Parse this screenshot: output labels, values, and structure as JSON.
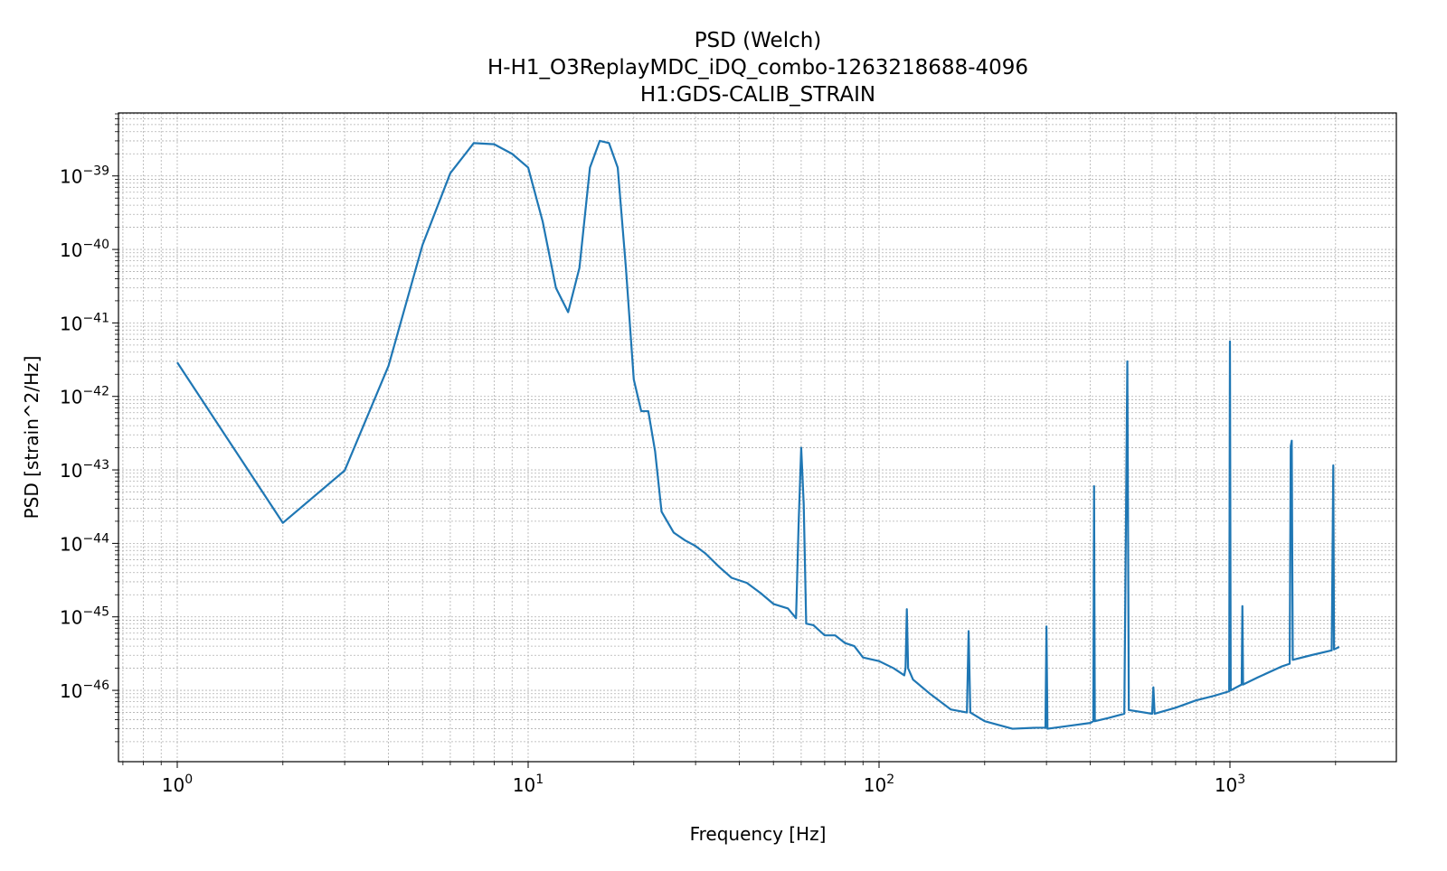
{
  "chart_data": {
    "type": "line",
    "title": [
      "PSD (Welch)",
      "H-H1_O3ReplayMDC_iDQ_combo-1263218688-4096",
      "H1:GDS-CALIB_STRAIN"
    ],
    "xlabel": "Frequency [Hz]",
    "ylabel": "PSD [strain^2/Hz]",
    "xscale": "log",
    "yscale": "log",
    "grid": true,
    "xlim": [
      0.68,
      2980
    ],
    "ylim": [
      1.07e-47,
      7.2e-39
    ],
    "xticks": [
      {
        "value": 1,
        "label": "100"
      },
      {
        "value": 10,
        "label": "101"
      },
      {
        "value": 100,
        "label": "102"
      },
      {
        "value": 1000,
        "label": "103"
      }
    ],
    "yticks": [
      {
        "value": 1e-46,
        "label": "10−46"
      },
      {
        "value": 1e-45,
        "label": "10−45"
      },
      {
        "value": 1e-44,
        "label": "10−44"
      },
      {
        "value": 1e-43,
        "label": "10−43"
      },
      {
        "value": 1e-42,
        "label": "10−42"
      },
      {
        "value": 1e-41,
        "label": "10−41"
      },
      {
        "value": 1e-40,
        "label": "10−40"
      },
      {
        "value": 1e-39,
        "label": "10−39"
      }
    ],
    "x": [
      1,
      2,
      3,
      4,
      5,
      6,
      7,
      8,
      9,
      10,
      11,
      12,
      13,
      14,
      15,
      16,
      17,
      18,
      19,
      20,
      21,
      22,
      23,
      24,
      26,
      28,
      30,
      32,
      35,
      38,
      42,
      46,
      50,
      55,
      58,
      59,
      60,
      61,
      62,
      65,
      70,
      75,
      80,
      85,
      90,
      100,
      110,
      118,
      119,
      120,
      121,
      125,
      140,
      160,
      178,
      180,
      182,
      200,
      240,
      280,
      298,
      300,
      302,
      350,
      400,
      408,
      410,
      412,
      450,
      500,
      510,
      515,
      600,
      605,
      610,
      700,
      800,
      900,
      995,
      1000,
      1005,
      1080,
      1085,
      1090,
      1200,
      1400,
      1480,
      1490,
      1500,
      1510,
      1700,
      1950,
      1970,
      1980,
      2048
    ],
    "series": [
      {
        "color": "#1f77b4",
        "values": [
          2.9e-42,
          1.9e-44,
          9.8e-44,
          2.6e-42,
          1.15e-40,
          1.09e-39,
          2.8e-39,
          2.7e-39,
          2e-39,
          1.3e-39,
          2.4e-40,
          3e-41,
          1.4e-41,
          5.6e-41,
          1.3e-39,
          3e-39,
          2.8e-39,
          1.3e-39,
          5.5e-41,
          1.7e-42,
          6.3e-43,
          6.3e-43,
          1.8e-43,
          2.7e-44,
          1.4e-44,
          1.1e-44,
          9.2e-45,
          7.3e-45,
          4.8e-45,
          3.4e-45,
          2.9e-45,
          2.1e-45,
          1.5e-45,
          1.3e-45,
          9.6e-46,
          1.9e-44,
          2e-43,
          3.4e-44,
          8.1e-46,
          7.7e-46,
          5.6e-46,
          5.6e-46,
          4.4e-46,
          4e-46,
          2.8e-46,
          2.5e-46,
          2e-46,
          1.6e-46,
          2e-46,
          1.27e-45,
          2e-46,
          1.4e-46,
          8.9e-47,
          5.5e-47,
          5e-47,
          6.4e-46,
          5e-47,
          3.8e-47,
          3e-47,
          3.1e-47,
          3.1e-47,
          7.4e-46,
          3e-47,
          3.3e-47,
          3.6e-47,
          3.8e-47,
          6e-44,
          3.8e-47,
          4.2e-47,
          4.8e-47,
          3e-42,
          5.4e-47,
          4.8e-47,
          1.1e-46,
          4.8e-47,
          5.8e-47,
          7.3e-47,
          8.4e-47,
          9.7e-47,
          5.6e-42,
          1e-46,
          1.2e-46,
          1.4e-45,
          1.2e-46,
          1.5e-46,
          2.1e-46,
          2.3e-46,
          2.1e-43,
          2.5e-43,
          2.6e-46,
          3e-46,
          3.5e-46,
          1.15e-43,
          3.6e-46,
          3.9e-46
        ]
      }
    ]
  }
}
